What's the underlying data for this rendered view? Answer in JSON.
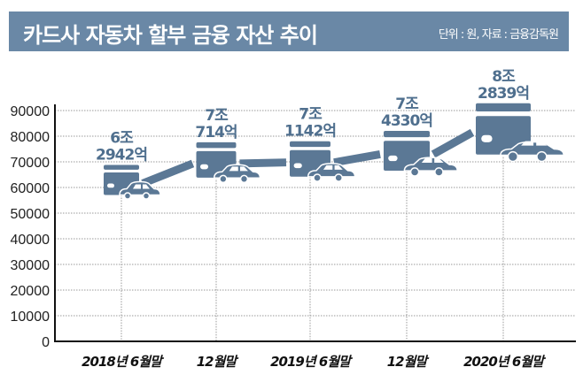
{
  "header": {
    "title": "카드사 자동차 할부 금융 자산 추이",
    "source": "단위 : 원, 자료 : 금융감독원"
  },
  "colors": {
    "accent": "#6a88a6",
    "icon": "#5b7895",
    "label": "#4f6f8e"
  },
  "chart_data": {
    "type": "line",
    "title": "카드사 자동차 할부 금융 자산 추이",
    "unit_note": "단위 : 원, 자료 : 금융감독원",
    "categories": [
      "2018년 6월말",
      "12월말",
      "2019년 6월말",
      "12월말",
      "2020년 6월말"
    ],
    "values": [
      62942,
      70714,
      71142,
      74330,
      82839
    ],
    "data_labels": [
      [
        "6조",
        "2942억"
      ],
      [
        "7조",
        "714억"
      ],
      [
        "7조",
        "1142억"
      ],
      [
        "7조",
        "4330억"
      ],
      [
        "8조",
        "2839억"
      ]
    ],
    "yticks": [
      "0",
      "10000",
      "20000",
      "30000",
      "40000",
      "50000",
      "60000",
      "70000",
      "80000",
      "90000"
    ],
    "ylim": [
      0,
      90000
    ],
    "grid": true,
    "marker_icon": "credit-card-with-car-icon"
  }
}
